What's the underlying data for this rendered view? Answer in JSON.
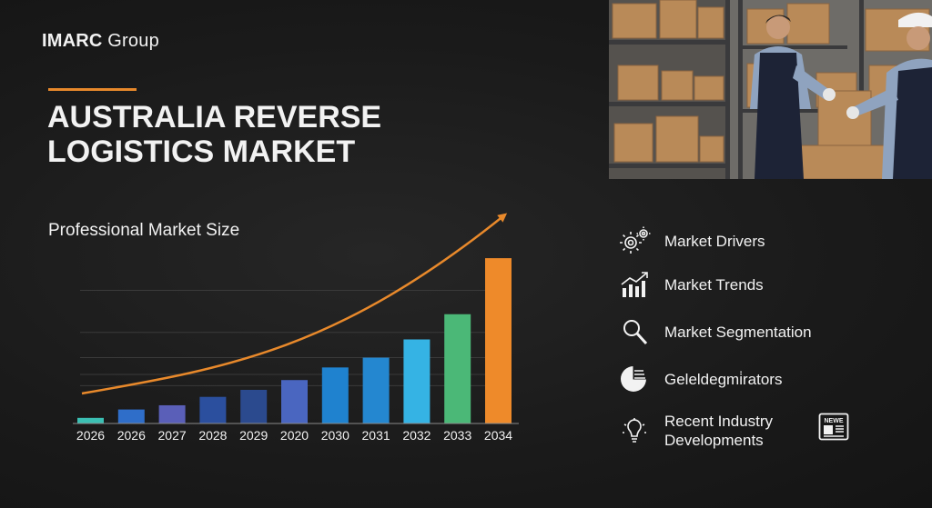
{
  "brand": {
    "strong": "IMARC",
    "light": " Group"
  },
  "title": {
    "line1": "AUSTRALIA REVERSE",
    "line2": "LOGISTICS MARKET"
  },
  "chart_title": "Professional Market Size",
  "chart_data": {
    "type": "bar",
    "categories": [
      "2026",
      "2026",
      "2027",
      "2028",
      "2029",
      "2020",
      "2030",
      "2031",
      "2032",
      "2033",
      "2034"
    ],
    "values": [
      4,
      10,
      13,
      19,
      24,
      31,
      40,
      47,
      60,
      78,
      118
    ],
    "ylim": [
      0,
      120
    ],
    "grid": true,
    "colors": [
      "#3bbfb3",
      "#2f6ec9",
      "#5a5fb8",
      "#2b4f9e",
      "#2b4a8e",
      "#4a66c0",
      "#1f82cf",
      "#2487d0",
      "#35b3e4",
      "#4bb877",
      "#ee8a2a"
    ],
    "trend_arrow_color": "#e8892b"
  },
  "menu": [
    {
      "icon": "gears-icon",
      "label": "Market Drivers"
    },
    {
      "icon": "rising-bar-chart-icon",
      "label": "Market Trends"
    },
    {
      "icon": "magnifier-icon",
      "label": "Market Segmentation"
    },
    {
      "icon": "pie-chart-icon",
      "label": "Geleldegmi̇rators"
    },
    {
      "icon": "lightbulb-icon",
      "label": "Recent Industry Developments"
    }
  ],
  "news_icon_text": "NEWE",
  "accent_color": "#e8892b"
}
